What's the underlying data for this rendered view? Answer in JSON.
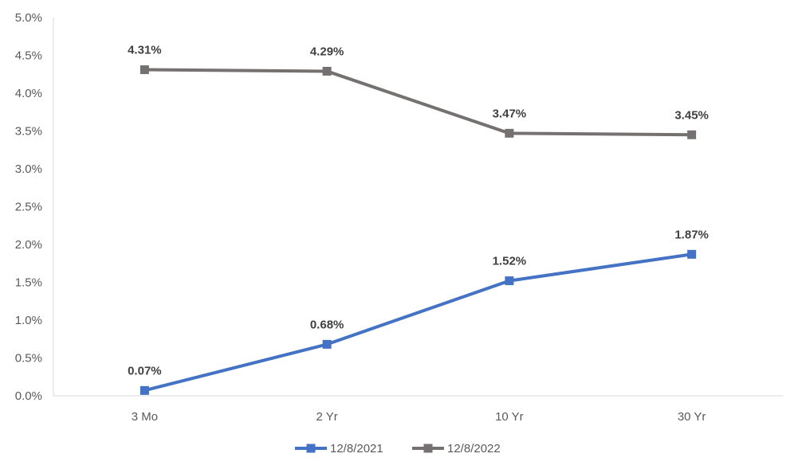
{
  "chart_data": {
    "type": "line",
    "categories": [
      "3 Mo",
      "2 Yr",
      "10 Yr",
      "30 Yr"
    ],
    "series": [
      {
        "name": "12/8/2021",
        "values": [
          0.07,
          0.68,
          1.52,
          1.87
        ],
        "labels": [
          "0.07%",
          "0.68%",
          "1.52%",
          "1.87%"
        ],
        "color": "#4472C4"
      },
      {
        "name": "12/8/2022",
        "values": [
          4.31,
          4.29,
          3.47,
          3.45
        ],
        "labels": [
          "4.31%",
          "4.29%",
          "3.47%",
          "3.45%"
        ],
        "color": "#767171"
      }
    ],
    "ylim": [
      0,
      5
    ],
    "yticks": [
      "0.0%",
      "0.5%",
      "1.0%",
      "1.5%",
      "2.0%",
      "2.5%",
      "3.0%",
      "3.5%",
      "4.0%",
      "4.5%",
      "5.0%"
    ],
    "grid": false,
    "legend_position": "bottom"
  }
}
